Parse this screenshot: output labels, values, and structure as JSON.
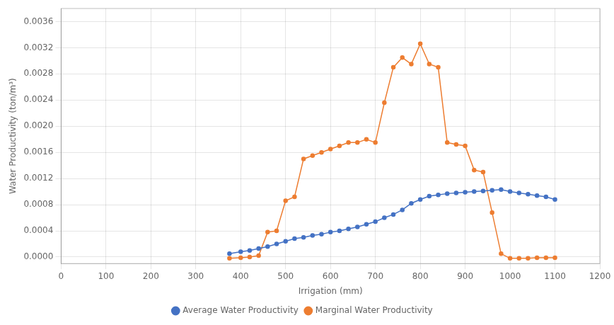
{
  "chart_data": {
    "type": "line",
    "xlabel": "Irrigation (mm)",
    "ylabel": "Water Productivity (ton/m³)",
    "x": [
      375,
      400,
      420,
      440,
      460,
      480,
      500,
      520,
      540,
      560,
      580,
      600,
      620,
      640,
      660,
      680,
      700,
      720,
      740,
      760,
      780,
      800,
      820,
      840,
      860,
      880,
      900,
      920,
      940,
      960,
      980,
      1000,
      1020,
      1040,
      1060,
      1080,
      1100
    ],
    "series": [
      {
        "name": "Average Water Productivity",
        "color": "#4472C4",
        "marker": "circle",
        "line_style": "solid",
        "values": [
          5e-05,
          8e-05,
          0.0001,
          0.00013,
          0.00016,
          0.0002,
          0.00024,
          0.00028,
          0.0003,
          0.00033,
          0.00035,
          0.00038,
          0.0004,
          0.00043,
          0.00046,
          0.0005,
          0.00054,
          0.0006,
          0.00065,
          0.00072,
          0.00082,
          0.00088,
          0.00093,
          0.00095,
          0.00097,
          0.00098,
          0.00099,
          0.001,
          0.00101,
          0.00102,
          0.00103,
          0.001,
          0.00098,
          0.00096,
          0.00094,
          0.00092,
          0.00088
        ]
      },
      {
        "name": "Marginal Water Productivity",
        "color": "#ED7D31",
        "marker": "circle",
        "line_style": "solid",
        "values": [
          -2e-05,
          -1e-05,
          0.0,
          2e-05,
          0.00038,
          0.0004,
          0.00086,
          0.00092,
          0.0015,
          0.00155,
          0.0016,
          0.00165,
          0.0017,
          0.00175,
          0.00175,
          0.0018,
          0.00175,
          0.00236,
          0.0029,
          0.00305,
          0.00295,
          0.00326,
          0.00295,
          0.0029,
          0.00175,
          0.00172,
          0.0017,
          0.00133,
          0.0013,
          0.00068,
          5e-05,
          -2e-05,
          -2e-05,
          -2e-05,
          -1e-05,
          -1e-05,
          -1e-05
        ]
      }
    ],
    "xlim": [
      0,
      1200
    ],
    "ylim": [
      -0.0001,
      0.0038
    ],
    "xticks": [
      0,
      100,
      200,
      300,
      400,
      500,
      600,
      700,
      800,
      900,
      1000,
      1100,
      1200
    ],
    "yticks": [
      {
        "value": 0,
        "label": "0.0000"
      },
      {
        "value": 0.0004,
        "label": "0.0004"
      },
      {
        "value": 0.0008,
        "label": "0.0008"
      },
      {
        "value": 0.0012,
        "label": "0.0012"
      },
      {
        "value": 0.0016,
        "label": "0.0016"
      },
      {
        "value": 0.002,
        "label": "0.0020"
      },
      {
        "value": 0.0024,
        "label": "0.0024"
      },
      {
        "value": 0.0028,
        "label": "0.0028"
      },
      {
        "value": 0.0032,
        "label": "0.0032"
      },
      {
        "value": 0.0036,
        "label": "0.0036"
      }
    ],
    "grid": true,
    "legend": "bottom"
  }
}
